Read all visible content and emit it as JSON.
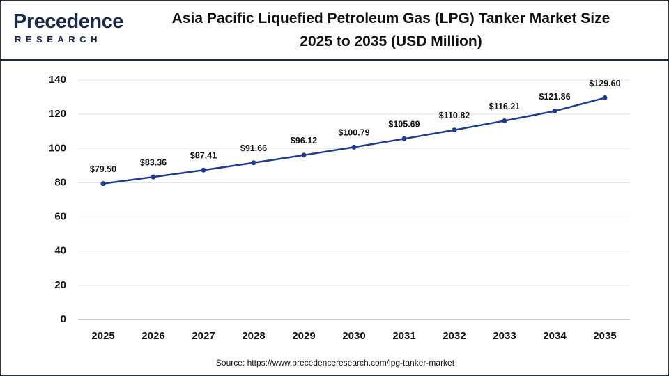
{
  "logo": {
    "name": "Precedence",
    "tagline": "RESEARCH"
  },
  "chart_data": {
    "type": "line",
    "title": "Asia Pacific Liquefied Petroleum Gas (LPG) Tanker Market Size 2025 to 2035 (USD Million)",
    "categories": [
      "2025",
      "2026",
      "2027",
      "2028",
      "2029",
      "2030",
      "2031",
      "2032",
      "2033",
      "2034",
      "2035"
    ],
    "values": [
      79.5,
      83.36,
      87.41,
      91.66,
      96.12,
      100.79,
      105.69,
      110.82,
      116.21,
      121.86,
      129.6
    ],
    "value_labels": [
      "$79.50",
      "$83.36",
      "$87.41",
      "$91.66",
      "$96.12",
      "$100.79",
      "$105.69",
      "$110.82",
      "$116.21",
      "$121.86",
      "$129.60"
    ],
    "color": "#1f3a93",
    "ylim": [
      0,
      140
    ],
    "yticks": [
      0,
      20,
      40,
      60,
      80,
      100,
      120,
      140
    ],
    "grid": true,
    "source": "Source: https://www.precedenceresearch.com/lpg-tanker-market"
  }
}
